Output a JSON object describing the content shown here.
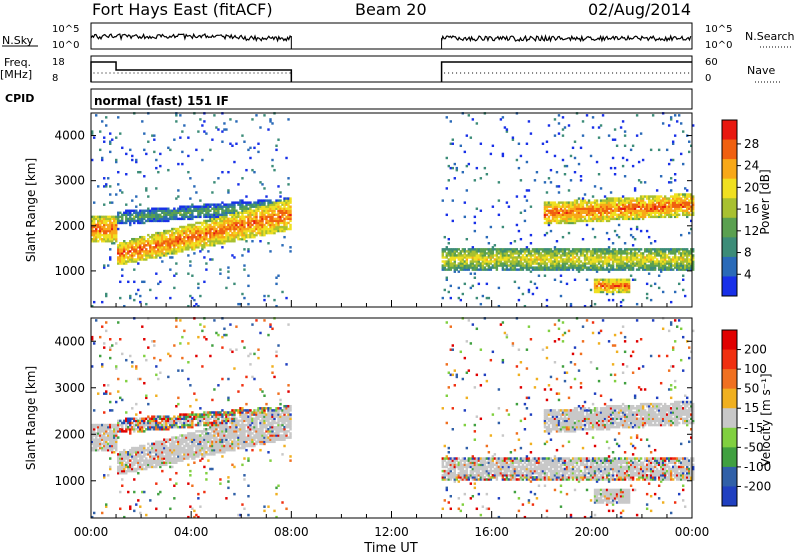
{
  "header": {
    "title": "Fort Hays East (fitACF)",
    "beam": "Beam 20",
    "date": "02/Aug/2014"
  },
  "top_panels": {
    "nsky_label": "N.Sky",
    "nsky_ticks": [
      "10^5",
      "10^0"
    ],
    "nsearch_label": "N.Search",
    "freq_label": "Freq.",
    "freq_unit": "[MHz]",
    "freq_ticks": [
      "18",
      "8"
    ],
    "nave_label": "Nave",
    "nave_ticks": [
      "60",
      "0"
    ],
    "cpid_label": "CPID",
    "cpid_text": "normal (fast) 151 IF"
  },
  "chart_data": [
    {
      "type": "heatmap",
      "name": "power",
      "ylabel": "Slant Range [km]",
      "yticks": [
        1000,
        2000,
        3000,
        4000
      ],
      "ylim": [
        200,
        4500
      ],
      "xlabel": "Time UT",
      "xticks": [
        "00:00",
        "04:00",
        "08:00",
        "12:00",
        "16:00",
        "20:00",
        "00:00"
      ],
      "xlim_hours": [
        0,
        24
      ],
      "colorbar": {
        "label": "Power [dB]",
        "ticks": [
          "4",
          "8",
          "12",
          "16",
          "20",
          "24",
          "28"
        ],
        "colors": [
          "#1830e8",
          "#2a6ab8",
          "#3c8c78",
          "#5aa050",
          "#a8c030",
          "#f0e020",
          "#f8a818",
          "#f06010",
          "#e81810"
        ]
      },
      "data_gap_hours": [
        8,
        14
      ],
      "echo_bands": [
        {
          "start_h": 0.0,
          "end_h": 1.0,
          "range_km": [
            1600,
            2200
          ],
          "level": "strong"
        },
        {
          "start_h": 1.0,
          "end_h": 8.0,
          "range_km_start": [
            1100,
            1600
          ],
          "range_km_end": [
            1900,
            2600
          ],
          "level": "strong"
        },
        {
          "start_h": 1.0,
          "end_h": 8.0,
          "range_km_start": [
            2000,
            2300
          ],
          "range_km_end": [
            2300,
            2600
          ],
          "level": "weak"
        },
        {
          "start_h": 14.0,
          "end_h": 24.0,
          "range_km": [
            1000,
            1500
          ],
          "level": "medium"
        },
        {
          "start_h": 18.0,
          "end_h": 24.0,
          "range_km_start": [
            2000,
            2500
          ],
          "range_km_end": [
            2200,
            2700
          ],
          "level": "strong"
        },
        {
          "start_h": 20.0,
          "end_h": 21.5,
          "range_km": [
            500,
            800
          ],
          "level": "strong"
        }
      ]
    },
    {
      "type": "heatmap",
      "name": "velocity",
      "ylabel": "Slant Range [km]",
      "yticks": [
        1000,
        2000,
        3000,
        4000
      ],
      "ylim": [
        200,
        4500
      ],
      "xlabel": "Time UT",
      "xticks": [
        "00:00",
        "04:00",
        "08:00",
        "12:00",
        "16:00",
        "20:00",
        "00:00"
      ],
      "xlim_hours": [
        0,
        24
      ],
      "colorbar": {
        "label": "Velocity [m s⁻¹]",
        "ticks": [
          "200",
          "100",
          "50",
          "15",
          "-15",
          "-50",
          "-100",
          "-200"
        ],
        "colors": [
          "#2040c0",
          "#3060a8",
          "#40a040",
          "#80d040",
          "#c8c8c8",
          "#f0b020",
          "#f07020",
          "#f03010",
          "#e00000"
        ]
      },
      "data_gap_hours": [
        8,
        14
      ],
      "ground_scatter_color": "#c8c8c8"
    }
  ]
}
